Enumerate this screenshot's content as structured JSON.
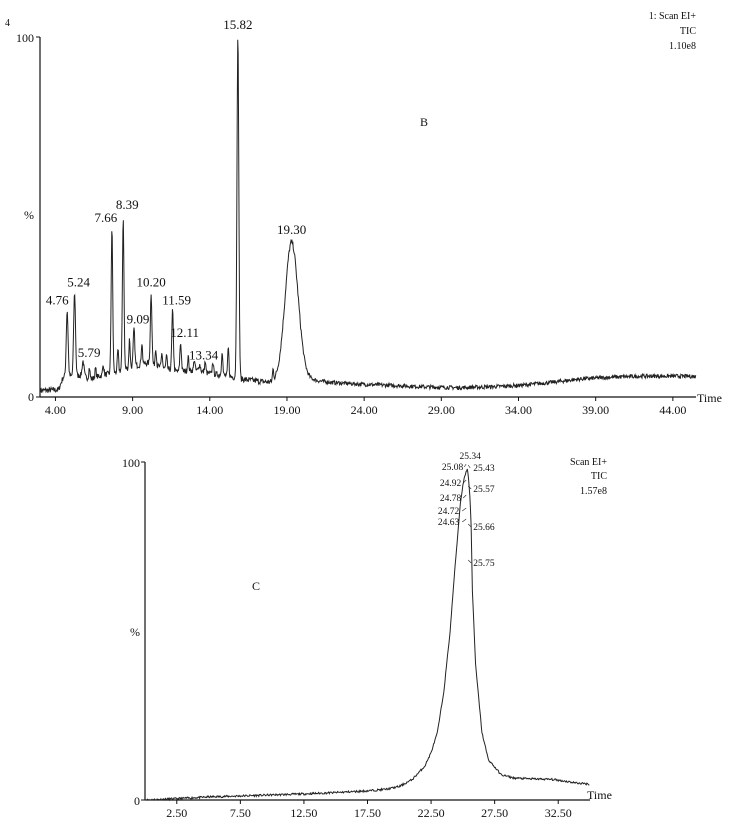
{
  "chart_data": [
    {
      "type": "line",
      "panel_label": "B",
      "corner_mark": "4",
      "info_lines": [
        "1: Scan EI+",
        "TIC",
        "1.10e8"
      ],
      "xlabel": "Time",
      "ylabel": "%",
      "y_ticks": [
        "100",
        "0"
      ],
      "xlim": [
        3.0,
        45.5
      ],
      "ylim": [
        0,
        100
      ],
      "x_ticks": [
        "4.00",
        "9.00",
        "14.00",
        "19.00",
        "24.00",
        "29.00",
        "34.00",
        "39.00",
        "44.00"
      ],
      "baseline": [
        [
          3.0,
          1.8
        ],
        [
          4.2,
          2.0
        ],
        [
          4.5,
          5.5
        ],
        [
          5.6,
          6.0
        ],
        [
          6.3,
          5.0
        ],
        [
          7.0,
          6.0
        ],
        [
          7.5,
          6.5
        ],
        [
          8.0,
          7.0
        ],
        [
          9.0,
          8.5
        ],
        [
          10.0,
          9.5
        ],
        [
          11.0,
          8.0
        ],
        [
          12.0,
          7.0
        ],
        [
          13.0,
          7.5
        ],
        [
          14.0,
          6.5
        ],
        [
          15.0,
          6.0
        ],
        [
          16.0,
          5.0
        ],
        [
          17.0,
          4.5
        ],
        [
          18.0,
          4.0
        ],
        [
          19.0,
          5.0
        ],
        [
          20.0,
          5.5
        ],
        [
          21.0,
          4.5
        ],
        [
          22.0,
          4.0
        ],
        [
          24.0,
          3.5
        ],
        [
          26.0,
          3.2
        ],
        [
          28.0,
          2.8
        ],
        [
          30.0,
          2.6
        ],
        [
          32.0,
          2.8
        ],
        [
          34.0,
          3.2
        ],
        [
          36.0,
          4.0
        ],
        [
          38.0,
          5.0
        ],
        [
          40.0,
          5.5
        ],
        [
          42.0,
          5.8
        ],
        [
          44.0,
          5.8
        ],
        [
          45.5,
          5.7
        ]
      ],
      "peaks": [
        {
          "rt": 4.76,
          "height": 24,
          "width": 0.06,
          "label": "4.76"
        },
        {
          "rt": 5.24,
          "height": 29,
          "width": 0.06,
          "label": "5.24"
        },
        {
          "rt": 5.79,
          "height": 10,
          "width": 0.06,
          "label": "5.79"
        },
        {
          "rt": 7.66,
          "height": 47,
          "width": 0.05,
          "label": "7.66"
        },
        {
          "rt": 8.39,
          "height": 50,
          "width": 0.05,
          "label": "8.39"
        },
        {
          "rt": 9.09,
          "height": 19,
          "width": 0.05,
          "label": "9.09"
        },
        {
          "rt": 10.2,
          "height": 29,
          "width": 0.05,
          "label": "10.20"
        },
        {
          "rt": 11.59,
          "height": 24,
          "width": 0.05,
          "label": "11.59"
        },
        {
          "rt": 12.11,
          "height": 15,
          "width": 0.05,
          "label": "12.11"
        },
        {
          "rt": 13.34,
          "height": 9,
          "width": 0.06,
          "label": "13.34"
        },
        {
          "rt": 15.82,
          "height": 100,
          "width": 0.06,
          "label": "15.82"
        },
        {
          "rt": 19.3,
          "height": 43,
          "width": 0.42,
          "label": "19.30"
        }
      ]
    },
    {
      "type": "line",
      "panel_label": "C",
      "info_lines": [
        "Scan EI+",
        "TIC",
        "1.57e8"
      ],
      "xlabel": "Time",
      "ylabel": "%",
      "y_ticks": [
        "100",
        "0"
      ],
      "xlim": [
        0.0,
        35.0
      ],
      "ylim": [
        0,
        100
      ],
      "x_ticks": [
        "2.50",
        "7.50",
        "12.50",
        "17.50",
        "22.50",
        "27.50",
        "32.50"
      ],
      "trace": [
        [
          0.0,
          0.0
        ],
        [
          2.5,
          0.4
        ],
        [
          5.0,
          0.9
        ],
        [
          7.5,
          1.2
        ],
        [
          10.0,
          1.5
        ],
        [
          12.5,
          1.8
        ],
        [
          15.0,
          2.2
        ],
        [
          17.5,
          2.7
        ],
        [
          19.0,
          3.2
        ],
        [
          20.0,
          4.0
        ],
        [
          21.0,
          6.0
        ],
        [
          22.0,
          10.0
        ],
        [
          22.5,
          14.0
        ],
        [
          23.0,
          20.0
        ],
        [
          23.5,
          32.0
        ],
        [
          24.0,
          50.0
        ],
        [
          24.3,
          65.0
        ],
        [
          24.63,
          80.0
        ],
        [
          24.72,
          84.0
        ],
        [
          24.78,
          87.0
        ],
        [
          24.92,
          91.0
        ],
        [
          25.08,
          95.0
        ],
        [
          25.34,
          98.0
        ],
        [
          25.43,
          96.0
        ],
        [
          25.57,
          89.0
        ],
        [
          25.66,
          80.0
        ],
        [
          25.75,
          62.0
        ],
        [
          26.0,
          40.0
        ],
        [
          26.5,
          20.0
        ],
        [
          27.0,
          12.0
        ],
        [
          28.0,
          7.5
        ],
        [
          29.0,
          6.5
        ],
        [
          30.0,
          6.3
        ],
        [
          32.0,
          6.1
        ],
        [
          33.0,
          5.6
        ],
        [
          34.0,
          5.0
        ],
        [
          35.0,
          4.7
        ]
      ],
      "peak_labels": [
        "25.34",
        "25.08",
        "25.43",
        "24.92",
        "25.57",
        "24.78",
        "24.72",
        "24.63",
        "25.66",
        "25.75"
      ]
    }
  ]
}
